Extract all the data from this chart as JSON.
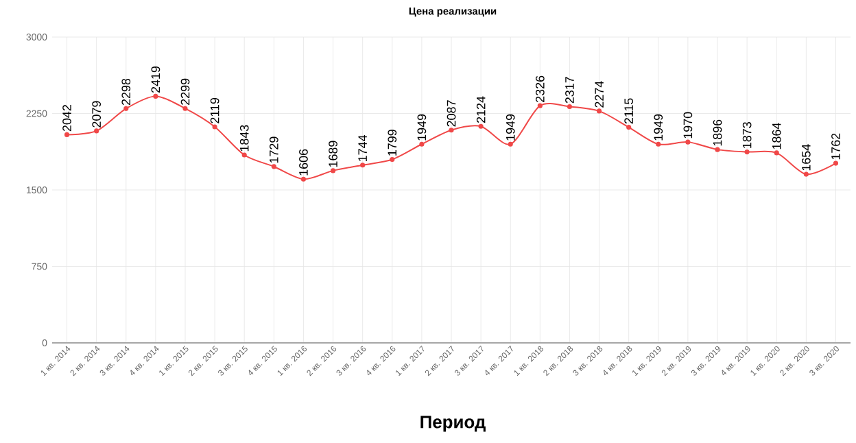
{
  "chart_data": {
    "type": "line",
    "title": "Цена реализации",
    "xlabel": "Период",
    "categories": [
      "1 кв. 2014",
      "2 кв. 2014",
      "3 кв. 2014",
      "4 кв. 2014",
      "1 кв. 2015",
      "2 кв. 2015",
      "3 кв. 2015",
      "4 кв. 2015",
      "1 кв. 2016",
      "2 кв. 2016",
      "3 кв. 2016",
      "4 кв. 2016",
      "1 кв. 2017",
      "2 кв. 2017",
      "3 кв. 2017",
      "4 кв. 2017",
      "1 кв. 2018",
      "2 кв. 2018",
      "3 кв. 2018",
      "4 кв. 2018",
      "1 кв. 2019",
      "2 кв. 2019",
      "3 кв. 2019",
      "4 кв. 2019",
      "1 кв. 2020",
      "2 кв. 2020",
      "3 кв. 2020"
    ],
    "values": [
      2042,
      2079,
      2298,
      2419,
      2299,
      2119,
      1843,
      1729,
      1606,
      1689,
      1744,
      1799,
      1949,
      2087,
      2124,
      1949,
      2326,
      2317,
      2274,
      2115,
      1949,
      1970,
      1896,
      1873,
      1864,
      1654,
      1762
    ],
    "color": "#f04848",
    "ylim": [
      0,
      3000
    ],
    "yticks": [
      0,
      750,
      1500,
      2250,
      3000
    ],
    "grid": true,
    "marker": "circle",
    "line_style": "solid",
    "data_labels": true
  }
}
